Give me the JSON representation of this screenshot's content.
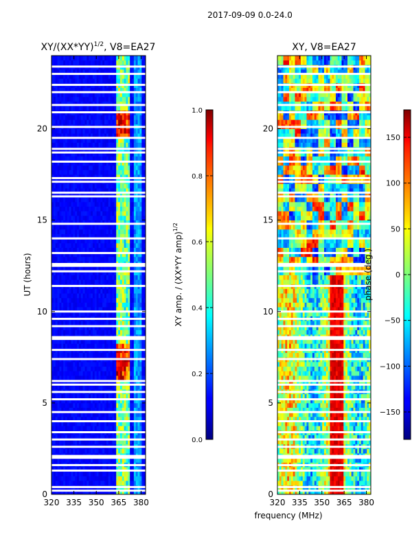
{
  "figure": {
    "suptitle": "2017-09-09 0.0-24.0"
  },
  "chart_data": [
    {
      "type": "heatmap",
      "title_main": "XY/(XX*YY)",
      "title_exp": "1/2",
      "title_tail": ", V8=EA27",
      "xlabel": "",
      "ylabel": "UT (hours)",
      "xlim": [
        320,
        383
      ],
      "ylim": [
        0,
        24
      ],
      "xticks": [
        320,
        335,
        350,
        365,
        380
      ],
      "yticks": [
        0,
        5,
        10,
        15,
        20
      ],
      "colorbar": {
        "label_main": "XY amp. / (XX*YY amp)",
        "label_exp": "1/2",
        "range": [
          0.0,
          1.0
        ],
        "ticks": [
          "0.0",
          "0.2",
          "0.4",
          "0.6",
          "0.8",
          "1.0"
        ],
        "colormap": "jet"
      },
      "flagged_hours": [
        0.2,
        0.4,
        1.3,
        1.6,
        2.0,
        2.1,
        2.6,
        3.0,
        3.4,
        4.0,
        4.5,
        5.2,
        5.6,
        6.0,
        6.2,
        7.4,
        7.9,
        8.5,
        8.6,
        9.2,
        9.6,
        10.0,
        11.4,
        12.2,
        12.5,
        12.6,
        13.2,
        14.0,
        14.8,
        16.3,
        16.5,
        17.1,
        17.3,
        18.2,
        18.7,
        18.9,
        19.5,
        20.1,
        20.9,
        21.3,
        22.0,
        22.4,
        23.0,
        23.4
      ]
    },
    {
      "type": "heatmap",
      "title": "XY, V8=EA27",
      "xlabel": "frequency (MHz)",
      "ylabel": "",
      "xlim": [
        320,
        383
      ],
      "ylim": [
        0,
        24
      ],
      "xticks": [
        320,
        335,
        350,
        365,
        380
      ],
      "yticks": [
        0,
        5,
        10,
        15,
        20
      ],
      "colorbar": {
        "label": "phase (deg.)",
        "range": [
          -180,
          180
        ],
        "ticks": [
          "−150",
          "−100",
          "−50",
          "0",
          "50",
          "100",
          "150"
        ],
        "colormap": "jet"
      },
      "flagged_hours": [
        0.2,
        0.4,
        1.3,
        1.6,
        2.0,
        2.1,
        2.6,
        3.0,
        3.4,
        4.0,
        4.5,
        5.2,
        5.6,
        6.0,
        6.2,
        7.4,
        7.9,
        8.5,
        8.6,
        9.2,
        9.6,
        10.0,
        11.4,
        12.2,
        12.5,
        12.6,
        13.2,
        14.0,
        14.8,
        16.3,
        16.5,
        17.1,
        17.3,
        18.2,
        18.7,
        18.9,
        19.5,
        20.1,
        20.9,
        21.3,
        22.0,
        22.4,
        23.0,
        23.4
      ]
    }
  ]
}
